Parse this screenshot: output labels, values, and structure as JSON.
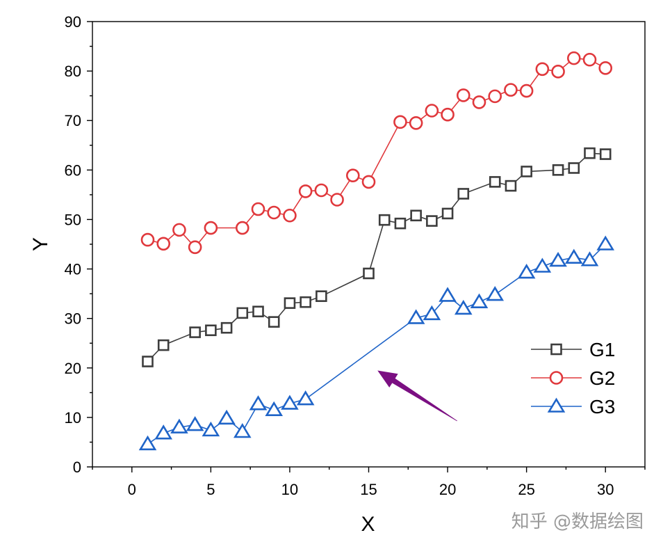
{
  "watermark": "知乎 @数据绘图",
  "chart_data": {
    "type": "line",
    "xlabel": "X",
    "ylabel": "Y",
    "xlim": [
      -2.5,
      32.5
    ],
    "ylim": [
      0,
      90
    ],
    "xticks": [
      0,
      5,
      10,
      15,
      20,
      25,
      30
    ],
    "yticks": [
      0,
      10,
      20,
      30,
      40,
      50,
      60,
      70,
      80,
      90
    ],
    "grid": false,
    "legend_position": "right",
    "series": [
      {
        "name": "G1",
        "color": "#3d3d3d",
        "marker": "square",
        "x": [
          1,
          2,
          4,
          5,
          6,
          7,
          8,
          9,
          10,
          11,
          12,
          15,
          16,
          17,
          18,
          19,
          20,
          21,
          23,
          24,
          25,
          27,
          28,
          29,
          30
        ],
        "y": [
          21.3,
          24.6,
          27.2,
          27.6,
          28.1,
          31.1,
          31.4,
          29.3,
          33.1,
          33.3,
          34.5,
          39.1,
          49.9,
          49.2,
          50.8,
          49.7,
          51.2,
          55.2,
          57.6,
          56.8,
          59.7,
          60.0,
          60.4,
          63.4,
          63.2
        ]
      },
      {
        "name": "G2",
        "color": "#e0383c",
        "marker": "circle",
        "x": [
          1,
          2,
          3,
          4,
          5,
          7,
          8,
          9,
          10,
          11,
          12,
          13,
          14,
          15,
          17,
          18,
          19,
          20,
          21,
          22,
          23,
          24,
          25,
          26,
          27,
          28,
          29,
          30
        ],
        "y": [
          45.9,
          45.1,
          47.9,
          44.4,
          48.3,
          48.3,
          52.1,
          51.4,
          50.8,
          55.7,
          55.9,
          54.0,
          58.9,
          57.6,
          69.7,
          69.5,
          72.0,
          71.2,
          75.1,
          73.7,
          74.9,
          76.2,
          76.0,
          80.4,
          79.9,
          82.6,
          82.3,
          80.6
        ]
      },
      {
        "name": "G3",
        "color": "#1f64c8",
        "marker": "triangle",
        "x": [
          1,
          2,
          3,
          4,
          5,
          6,
          7,
          8,
          9,
          10,
          11,
          18,
          19,
          20,
          21,
          22,
          23,
          25,
          26,
          27,
          28,
          29,
          30
        ],
        "y": [
          4.6,
          6.8,
          8.0,
          8.5,
          7.4,
          9.8,
          7.1,
          12.7,
          11.5,
          12.8,
          13.7,
          30.1,
          30.9,
          34.6,
          32.0,
          33.3,
          34.8,
          39.3,
          40.5,
          41.7,
          42.3,
          41.8,
          45.0
        ]
      }
    ],
    "annotation": {
      "type": "arrow",
      "color": "#7b0f82",
      "from": [
        20.6,
        9.3
      ],
      "to": [
        15.6,
        19.4
      ]
    }
  }
}
